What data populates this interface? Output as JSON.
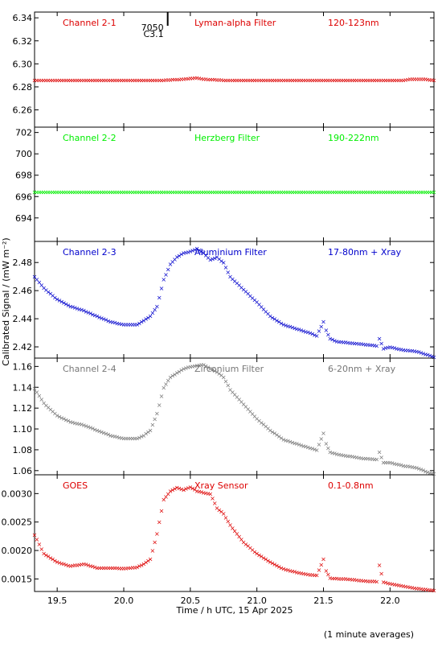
{
  "figure": {
    "xlabel": "Time / h UTC, 15 Apr 2025",
    "ylabel": "Calibrated Signal / (mW m⁻²)",
    "footnote": "(1 minute averages)",
    "marker_label": "7050",
    "marker_sublabel": "C3.1"
  },
  "chart_data": [
    {
      "type": "scatter",
      "name": "Channel 2-1",
      "title_fields": [
        "Channel 2-1",
        "Lyman-alpha Filter",
        "120-123nm"
      ],
      "color": "#dd0000",
      "ylim": [
        6.245,
        6.345
      ],
      "yticks": [
        6.26,
        6.28,
        6.3,
        6.32,
        6.34
      ],
      "ytick_labels": [
        "6.26",
        "6.28",
        "6.30",
        "6.32",
        "6.34"
      ],
      "xlim": [
        19.33,
        22.33
      ],
      "x": [
        19.33,
        19.5,
        19.7,
        19.9,
        20.1,
        20.3,
        20.45,
        20.55,
        20.6,
        20.75,
        20.9,
        21.1,
        21.3,
        21.5,
        21.7,
        21.9,
        22.1,
        22.15,
        22.2,
        22.25,
        22.33
      ],
      "y": [
        6.286,
        6.286,
        6.286,
        6.286,
        6.286,
        6.286,
        6.287,
        6.288,
        6.287,
        6.286,
        6.286,
        6.286,
        6.286,
        6.286,
        6.286,
        6.286,
        6.286,
        6.287,
        6.287,
        6.287,
        6.286
      ]
    },
    {
      "type": "scatter",
      "name": "Channel 2-2",
      "title_fields": [
        "Channel 2-2",
        "Herzberg Filter",
        "190-222nm"
      ],
      "color": "#00ee00",
      "ylim": [
        691.8,
        702.5
      ],
      "yticks": [
        694,
        696,
        698,
        700,
        702
      ],
      "ytick_labels": [
        "694",
        "696",
        "698",
        "700",
        "702"
      ],
      "xlim": [
        19.33,
        22.33
      ],
      "x": [
        19.33,
        19.7,
        20.1,
        20.5,
        20.9,
        21.3,
        21.7,
        22.1,
        22.33
      ],
      "y": [
        696.45,
        696.45,
        696.45,
        696.45,
        696.45,
        696.45,
        696.45,
        696.45,
        696.45
      ]
    },
    {
      "type": "scatter",
      "name": "Channel 2-3",
      "title_fields": [
        "Channel 2-3",
        "Aluminium Filter",
        "17-80nm + Xray"
      ],
      "color": "#0000cc",
      "ylim": [
        2.412,
        2.495
      ],
      "yticks": [
        2.42,
        2.44,
        2.46,
        2.48
      ],
      "ytick_labels": [
        "2.42",
        "2.44",
        "2.46",
        "2.48"
      ],
      "xlim": [
        19.33,
        22.33
      ],
      "x": [
        19.33,
        19.4,
        19.5,
        19.6,
        19.7,
        19.8,
        19.9,
        20.0,
        20.1,
        20.15,
        20.2,
        20.25,
        20.3,
        20.35,
        20.4,
        20.45,
        20.5,
        20.55,
        20.6,
        20.65,
        20.7,
        20.75,
        20.8,
        20.9,
        21.0,
        21.1,
        21.2,
        21.3,
        21.4,
        21.45,
        21.5,
        21.52,
        21.55,
        21.6,
        21.7,
        21.8,
        21.9,
        21.92,
        21.95,
        22.0,
        22.1,
        22.2,
        22.3,
        22.33
      ],
      "y": [
        2.47,
        2.462,
        2.454,
        2.449,
        2.446,
        2.442,
        2.438,
        2.436,
        2.436,
        2.439,
        2.442,
        2.449,
        2.468,
        2.479,
        2.484,
        2.487,
        2.488,
        2.49,
        2.487,
        2.482,
        2.484,
        2.48,
        2.47,
        2.461,
        2.452,
        2.442,
        2.436,
        2.433,
        2.43,
        2.428,
        2.438,
        2.432,
        2.426,
        2.424,
        2.423,
        2.422,
        2.421,
        2.426,
        2.419,
        2.42,
        2.418,
        2.417,
        2.414,
        2.413
      ]
    },
    {
      "type": "scatter",
      "name": "Channel 2-4",
      "title_fields": [
        "Channel 2-4",
        "Zirconium Filter",
        "6-20nm + Xray"
      ],
      "color": "#777777",
      "ylim": [
        1.056,
        1.168
      ],
      "yticks": [
        1.06,
        1.08,
        1.1,
        1.12,
        1.14,
        1.16
      ],
      "ytick_labels": [
        "1.06",
        "1.08",
        "1.10",
        "1.12",
        "1.14",
        "1.16"
      ],
      "xlim": [
        19.33,
        22.33
      ],
      "x": [
        19.33,
        19.4,
        19.5,
        19.6,
        19.7,
        19.8,
        19.9,
        20.0,
        20.1,
        20.15,
        20.2,
        20.25,
        20.3,
        20.35,
        20.4,
        20.45,
        20.5,
        20.55,
        20.6,
        20.65,
        20.7,
        20.75,
        20.8,
        20.9,
        21.0,
        21.1,
        21.2,
        21.3,
        21.4,
        21.45,
        21.5,
        21.52,
        21.55,
        21.6,
        21.7,
        21.8,
        21.9,
        21.92,
        21.95,
        22.0,
        22.1,
        22.2,
        22.3,
        22.33
      ],
      "y": [
        1.139,
        1.125,
        1.113,
        1.107,
        1.104,
        1.099,
        1.094,
        1.091,
        1.091,
        1.094,
        1.099,
        1.115,
        1.14,
        1.15,
        1.154,
        1.158,
        1.16,
        1.161,
        1.162,
        1.158,
        1.155,
        1.15,
        1.138,
        1.124,
        1.11,
        1.099,
        1.09,
        1.086,
        1.082,
        1.08,
        1.096,
        1.086,
        1.078,
        1.076,
        1.074,
        1.072,
        1.071,
        1.078,
        1.068,
        1.068,
        1.065,
        1.063,
        1.058,
        1.057
      ]
    },
    {
      "type": "scatter",
      "name": "GOES",
      "title_fields": [
        "GOES",
        "Xray Sensor",
        "0.1-0.8nm"
      ],
      "color": "#dd0000",
      "ylim": [
        0.00128,
        0.00333
      ],
      "yticks": [
        0.0015,
        0.002,
        0.0025,
        0.003
      ],
      "ytick_labels": [
        "0.0015",
        "0.0020",
        "0.0025",
        "0.0030"
      ],
      "xlim": [
        19.33,
        22.33
      ],
      "x": [
        19.33,
        19.4,
        19.5,
        19.6,
        19.7,
        19.8,
        19.9,
        20.0,
        20.1,
        20.15,
        20.2,
        20.25,
        20.3,
        20.35,
        20.4,
        20.45,
        20.5,
        20.55,
        20.6,
        20.65,
        20.7,
        20.75,
        20.8,
        20.9,
        21.0,
        21.1,
        21.2,
        21.3,
        21.4,
        21.45,
        21.5,
        21.52,
        21.55,
        21.6,
        21.7,
        21.8,
        21.9,
        21.92,
        21.95,
        22.0,
        22.1,
        22.2,
        22.3,
        22.33
      ],
      "y": [
        0.00228,
        0.00195,
        0.0018,
        0.00173,
        0.00177,
        0.0017,
        0.0017,
        0.00169,
        0.00171,
        0.00177,
        0.00185,
        0.0023,
        0.0029,
        0.00305,
        0.00311,
        0.00307,
        0.00312,
        0.00305,
        0.00302,
        0.003,
        0.00275,
        0.00265,
        0.00245,
        0.00215,
        0.00195,
        0.0018,
        0.00168,
        0.00162,
        0.00158,
        0.00157,
        0.00185,
        0.00165,
        0.00152,
        0.00151,
        0.0015,
        0.00147,
        0.00146,
        0.00175,
        0.00145,
        0.00142,
        0.00138,
        0.00134,
        0.00131,
        0.0013
      ]
    }
  ],
  "x_axis": {
    "ticks": [
      19.5,
      20.0,
      20.5,
      21.0,
      21.5,
      22.0
    ],
    "labels": [
      "19.5",
      "20.0",
      "20.5",
      "21.0",
      "21.5",
      "22.0"
    ]
  },
  "marker_x": 20.33
}
